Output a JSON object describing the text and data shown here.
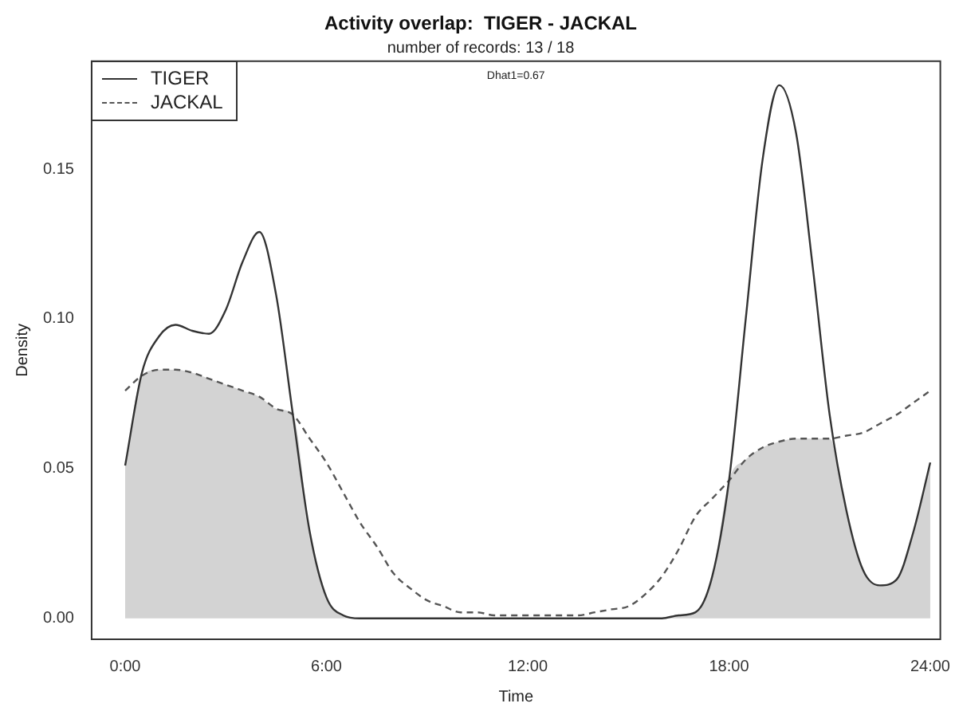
{
  "chart_data": {
    "type": "line",
    "title": "Activity overlap:  TIGER - JACKAL",
    "subtitle": "number of records: 13 / 18",
    "xlabel": "Time",
    "ylabel": "Density",
    "annotations": [
      "Dhat1=0.67"
    ],
    "x": [
      0,
      0.5,
      1,
      1.5,
      2,
      2.5,
      3,
      3.5,
      4,
      4.5,
      5,
      5.5,
      6,
      6.5,
      7,
      7.5,
      8,
      8.5,
      9,
      9.5,
      10,
      10.5,
      11,
      11.5,
      12,
      12.5,
      13,
      13.5,
      14,
      14.5,
      15,
      15.5,
      16,
      16.5,
      17,
      17.5,
      18,
      18.5,
      19,
      19.5,
      20,
      20.5,
      21,
      21.5,
      22,
      22.5,
      23,
      23.5,
      24
    ],
    "series": [
      {
        "type": "area",
        "color": "#d3d3d3",
        "values": [
          0.051,
          0.081,
          0.083,
          0.083,
          0.082,
          0.08,
          0.078,
          0.076,
          0.074,
          0.07,
          0.068,
          0.029,
          0.007,
          0.001,
          0,
          0,
          0,
          0,
          0,
          0,
          0,
          0,
          0,
          0,
          0,
          0,
          0,
          0,
          0,
          0,
          0,
          0,
          0,
          0.001,
          0.002,
          0.014,
          0.046,
          0.053,
          0.057,
          0.059,
          0.06,
          0.06,
          0.06,
          0.036,
          0.016,
          0.011,
          0.013,
          0.029,
          0.052
        ]
      },
      {
        "name": "TIGER",
        "color": "#333333",
        "line_style": "solid",
        "values": [
          0.051,
          0.082,
          0.094,
          0.098,
          0.096,
          0.095,
          0.103,
          0.119,
          0.129,
          0.108,
          0.068,
          0.029,
          0.007,
          0.001,
          0,
          0,
          0,
          0,
          0,
          0,
          0,
          0,
          0,
          0,
          0,
          0,
          0,
          0,
          0,
          0,
          0,
          0,
          0,
          0.001,
          0.002,
          0.014,
          0.046,
          0.1,
          0.153,
          0.178,
          0.162,
          0.117,
          0.068,
          0.036,
          0.016,
          0.011,
          0.013,
          0.029,
          0.052
        ]
      },
      {
        "name": "JACKAL",
        "color": "#555555",
        "line_style": "dashed",
        "values": [
          0.076,
          0.081,
          0.083,
          0.083,
          0.082,
          0.08,
          0.078,
          0.076,
          0.074,
          0.07,
          0.068,
          0.06,
          0.052,
          0.042,
          0.032,
          0.024,
          0.015,
          0.01,
          0.006,
          0.004,
          0.002,
          0.002,
          0.001,
          0.001,
          0.001,
          0.001,
          0.001,
          0.001,
          0.002,
          0.003,
          0.004,
          0.008,
          0.014,
          0.023,
          0.034,
          0.04,
          0.046,
          0.053,
          0.057,
          0.059,
          0.06,
          0.06,
          0.06,
          0.061,
          0.062,
          0.065,
          0.068,
          0.072,
          0.076
        ]
      }
    ],
    "xlim": [
      -1,
      24.3
    ],
    "xticks": [
      {
        "value": 0,
        "label": "0:00"
      },
      {
        "value": 6,
        "label": "6:00"
      },
      {
        "value": 12,
        "label": "12:00"
      },
      {
        "value": 18,
        "label": "18:00"
      },
      {
        "value": 24,
        "label": "24:00"
      }
    ],
    "ylim": [
      -0.007,
      0.186
    ],
    "yticks": [
      {
        "value": 0,
        "label": "0.00"
      },
      {
        "value": 0.05,
        "label": "0.05"
      },
      {
        "value": 0.1,
        "label": "0.10"
      },
      {
        "value": 0.15,
        "label": "0.15"
      }
    ],
    "grid": false,
    "legend": "top left",
    "marker": "none"
  }
}
